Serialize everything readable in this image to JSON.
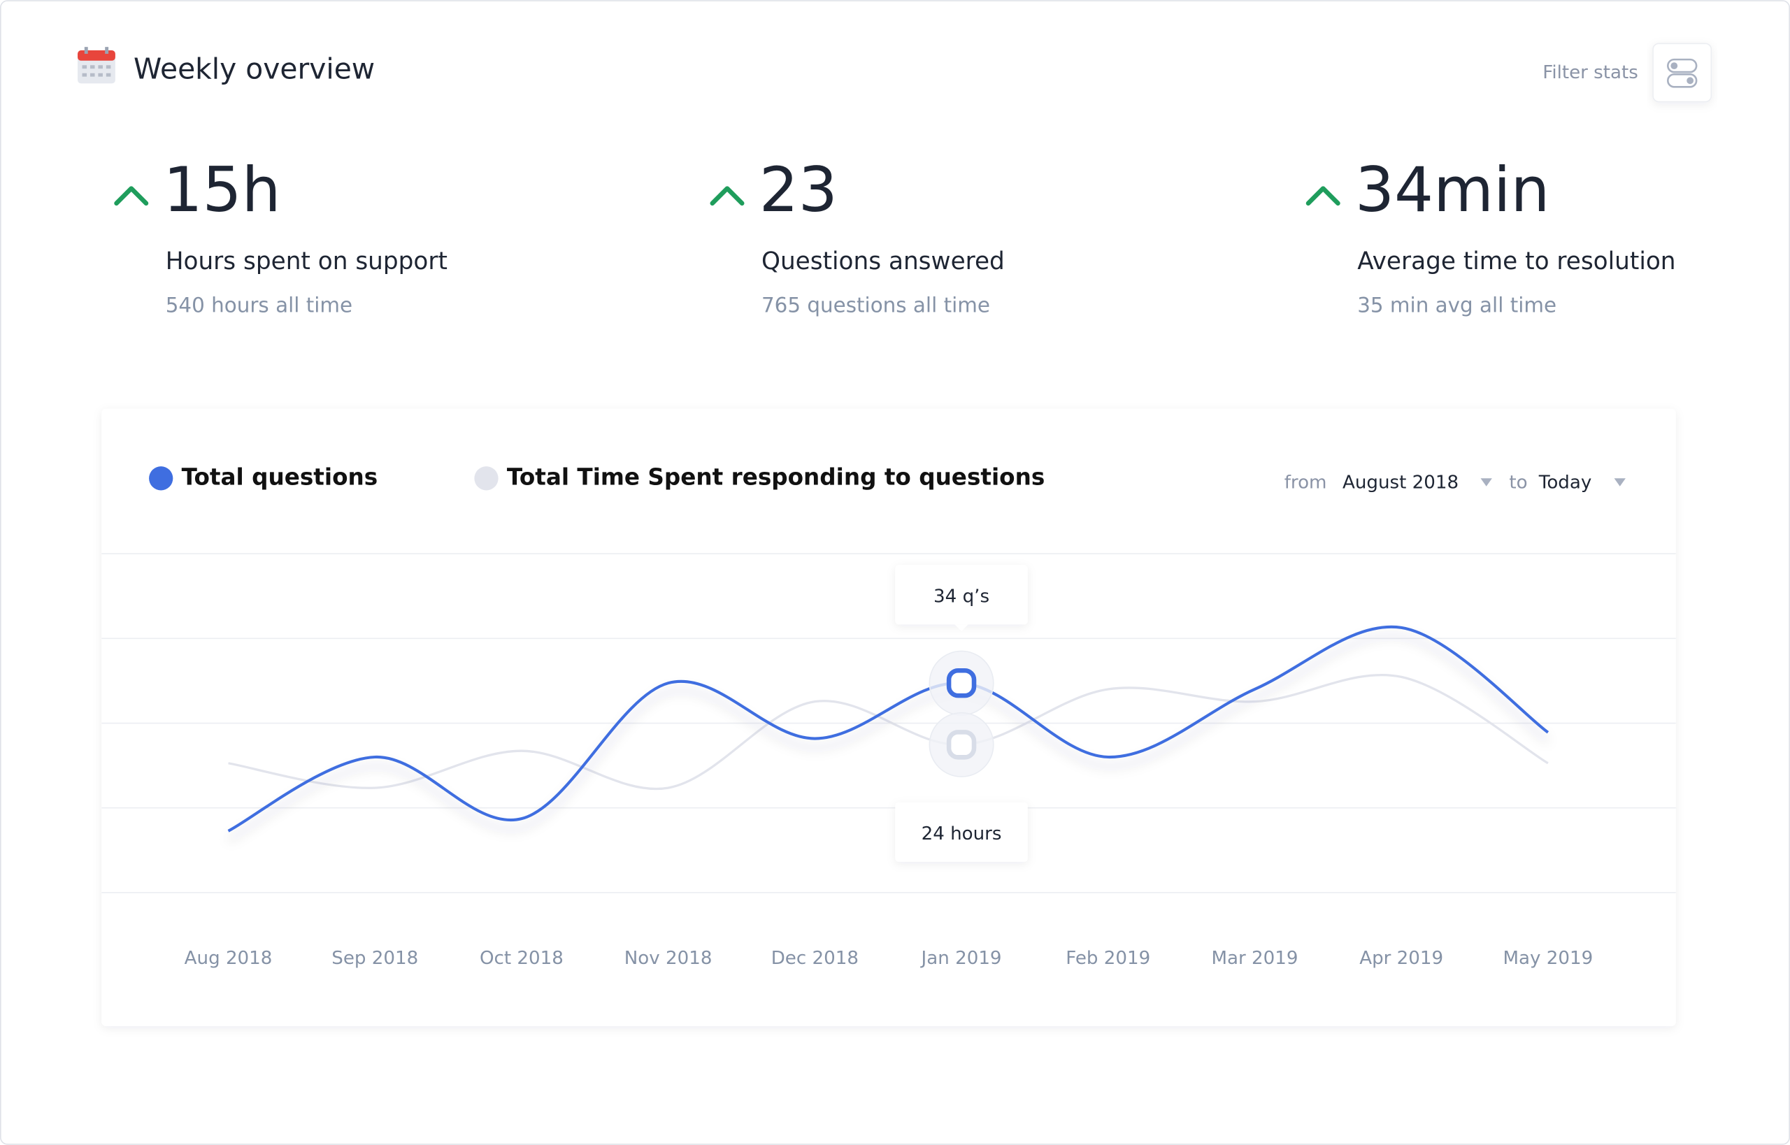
{
  "header": {
    "title": "Weekly overview",
    "filter": "Filter stats"
  },
  "stats": [
    {
      "value": "15h",
      "label": "Hours spent on support",
      "sub": "540 hours all time"
    },
    {
      "value": "23",
      "label": "Questions answered",
      "sub": "765 questions all time"
    },
    {
      "value": "34min",
      "label": "Average time to resolution",
      "sub": "35 min avg all time"
    }
  ],
  "chart_data": {
    "type": "line",
    "range": {
      "from_label": "from",
      "from": "August 2018",
      "to_label": "to",
      "to": "Today"
    },
    "categories": [
      "Aug 2018",
      "Sep 2018",
      "Oct 2018",
      "Nov 2018",
      "Dec 2018",
      "Jan 2019",
      "Feb 2019",
      "Mar 2019",
      "Apr 2019",
      "May 2019"
    ],
    "series": [
      {
        "name": "Total questions",
        "color": "#3f6ee0",
        "values": [
          10,
          22,
          12,
          34,
          25,
          34,
          22,
          33,
          43,
          26
        ]
      },
      {
        "name": "Total Time Spent responding to questions",
        "color": "#e2e4ec",
        "values": [
          21,
          17,
          23,
          17,
          31,
          24,
          33,
          31,
          35,
          21
        ]
      }
    ],
    "ylim": [
      0,
      55
    ],
    "annotations": [
      {
        "text": "34 q’s"
      },
      {
        "text": "24 hours"
      }
    ]
  }
}
